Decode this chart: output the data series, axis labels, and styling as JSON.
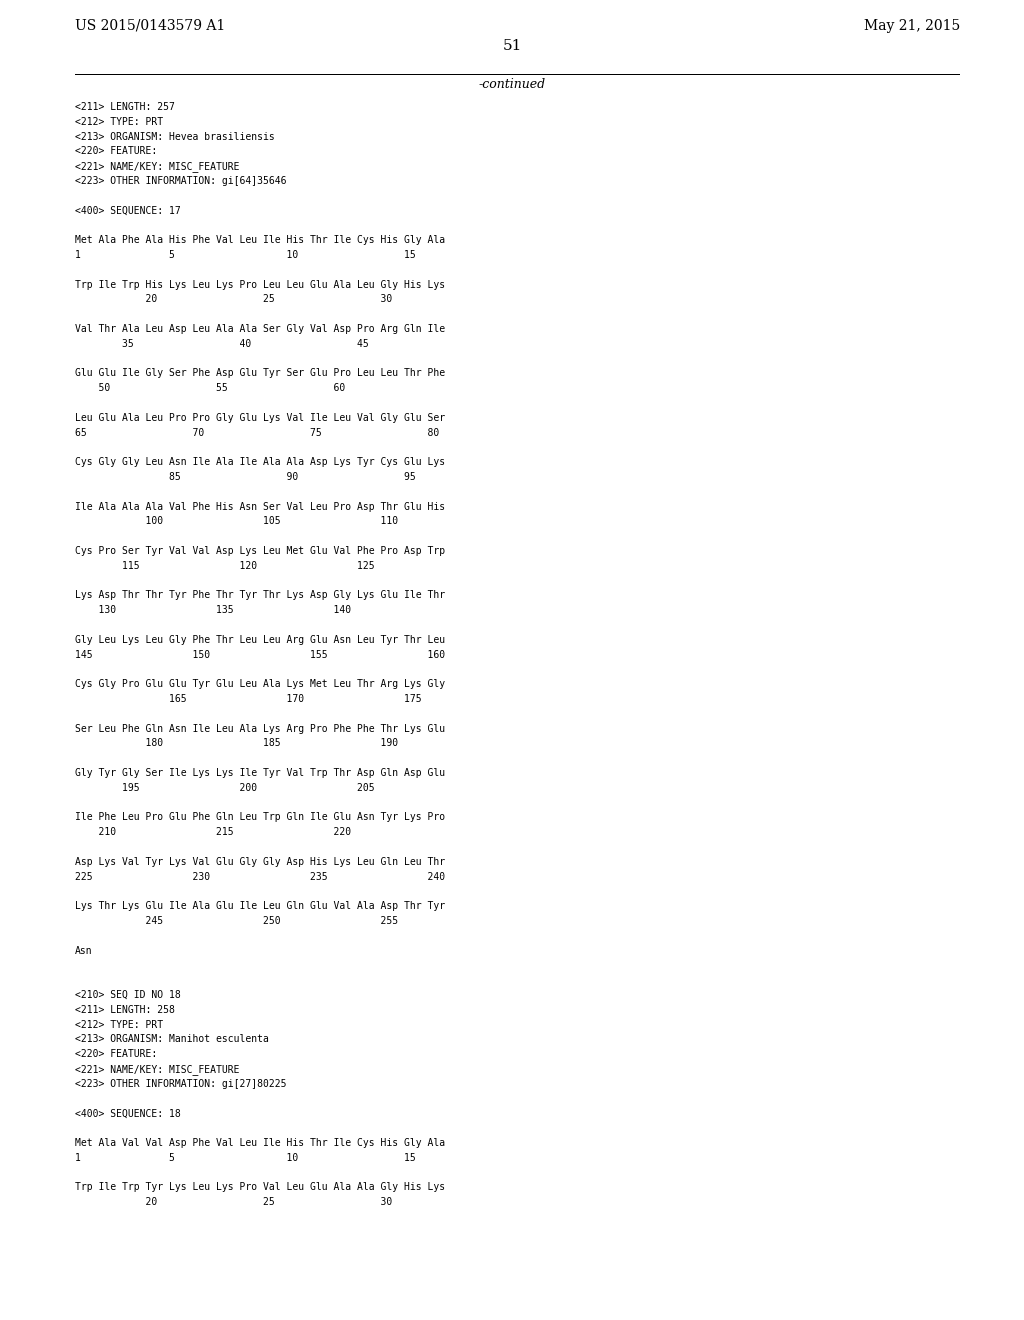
{
  "background_color": "#ffffff",
  "top_left_text": "US 2015/0143579 A1",
  "top_right_text": "May 21, 2015",
  "page_number": "51",
  "continued_text": "-continued",
  "mono_font": "DejaVu Sans Mono",
  "serif_font": "DejaVu Serif",
  "content": [
    "<211> LENGTH: 257",
    "<212> TYPE: PRT",
    "<213> ORGANISM: Hevea brasiliensis",
    "<220> FEATURE:",
    "<221> NAME/KEY: MISC_FEATURE",
    "<223> OTHER INFORMATION: gi[64]35646",
    "",
    "<400> SEQUENCE: 17",
    "",
    "Met Ala Phe Ala His Phe Val Leu Ile His Thr Ile Cys His Gly Ala",
    "1               5                   10                  15",
    "",
    "Trp Ile Trp His Lys Leu Lys Pro Leu Leu Glu Ala Leu Gly His Lys",
    "            20                  25                  30",
    "",
    "Val Thr Ala Leu Asp Leu Ala Ala Ser Gly Val Asp Pro Arg Gln Ile",
    "        35                  40                  45",
    "",
    "Glu Glu Ile Gly Ser Phe Asp Glu Tyr Ser Glu Pro Leu Leu Thr Phe",
    "    50                  55                  60",
    "",
    "Leu Glu Ala Leu Pro Pro Gly Glu Lys Val Ile Leu Val Gly Glu Ser",
    "65                  70                  75                  80",
    "",
    "Cys Gly Gly Leu Asn Ile Ala Ile Ala Ala Asp Lys Tyr Cys Glu Lys",
    "                85                  90                  95",
    "",
    "Ile Ala Ala Ala Val Phe His Asn Ser Val Leu Pro Asp Thr Glu His",
    "            100                 105                 110",
    "",
    "Cys Pro Ser Tyr Val Val Asp Lys Leu Met Glu Val Phe Pro Asp Trp",
    "        115                 120                 125",
    "",
    "Lys Asp Thr Thr Tyr Phe Thr Tyr Thr Lys Asp Gly Lys Glu Ile Thr",
    "    130                 135                 140",
    "",
    "Gly Leu Lys Leu Gly Phe Thr Leu Leu Arg Glu Asn Leu Tyr Thr Leu",
    "145                 150                 155                 160",
    "",
    "Cys Gly Pro Glu Glu Tyr Glu Leu Ala Lys Met Leu Thr Arg Lys Gly",
    "                165                 170                 175",
    "",
    "Ser Leu Phe Gln Asn Ile Leu Ala Lys Arg Pro Phe Phe Thr Lys Glu",
    "            180                 185                 190",
    "",
    "Gly Tyr Gly Ser Ile Lys Lys Ile Tyr Val Trp Thr Asp Gln Asp Glu",
    "        195                 200                 205",
    "",
    "Ile Phe Leu Pro Glu Phe Gln Leu Trp Gln Ile Glu Asn Tyr Lys Pro",
    "    210                 215                 220",
    "",
    "Asp Lys Val Tyr Lys Val Glu Gly Gly Asp His Lys Leu Gln Leu Thr",
    "225                 230                 235                 240",
    "",
    "Lys Thr Lys Glu Ile Ala Glu Ile Leu Gln Glu Val Ala Asp Thr Tyr",
    "            245                 250                 255",
    "",
    "Asn",
    "",
    "",
    "<210> SEQ ID NO 18",
    "<211> LENGTH: 258",
    "<212> TYPE: PRT",
    "<213> ORGANISM: Manihot esculenta",
    "<220> FEATURE:",
    "<221> NAME/KEY: MISC_FEATURE",
    "<223> OTHER INFORMATION: gi[27]80225",
    "",
    "<400> SEQUENCE: 18",
    "",
    "Met Ala Val Val Asp Phe Val Leu Ile His Thr Ile Cys His Gly Ala",
    "1               5                   10                  15",
    "",
    "Trp Ile Trp Tyr Lys Leu Lys Pro Val Leu Glu Ala Ala Gly His Lys",
    "            20                  25                  30"
  ]
}
